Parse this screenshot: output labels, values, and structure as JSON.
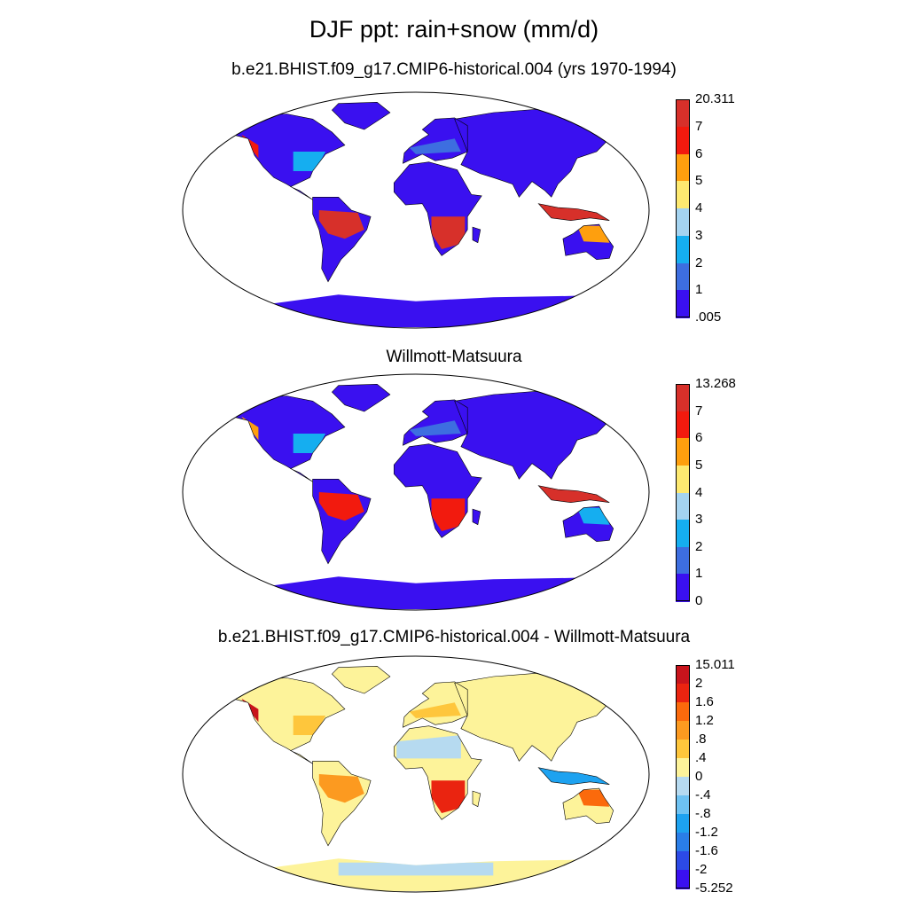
{
  "title": "DJF ppt: rain+snow (mm/d)",
  "panels": [
    {
      "id": "model",
      "subtitle": "b.e21.BHIST.f09_g17.CMIP6-historical.004 (yrs 1970-1994)",
      "colorbar": {
        "labels": [
          "20.311",
          "7",
          "6",
          "5",
          "4",
          "3",
          "2",
          "1",
          ".005"
        ],
        "colors": [
          "#d7302a",
          "#f21a0e",
          "#fe9f0e",
          "#fde970",
          "#a4d3f0",
          "#15aef0",
          "#3d6ee0",
          "#3a10f0"
        ]
      }
    },
    {
      "id": "obs",
      "subtitle": "Willmott-Matsuura",
      "colorbar": {
        "labels": [
          "13.268",
          "7",
          "6",
          "5",
          "4",
          "3",
          "2",
          "1",
          "0"
        ],
        "colors": [
          "#d7302a",
          "#f21a0e",
          "#fe9f0e",
          "#fde970",
          "#a4d3f0",
          "#15aef0",
          "#3d6ee0",
          "#3a10f0"
        ]
      }
    },
    {
      "id": "diff",
      "subtitle": "b.e21.BHIST.f09_g17.CMIP6-historical.004 - Willmott-Matsuura",
      "colorbar": {
        "labels": [
          "15.011",
          "2",
          "1.6",
          "1.2",
          ".8",
          ".4",
          "0",
          "-.4",
          "-.8",
          "-1.2",
          "-1.6",
          "-2",
          "-5.252"
        ],
        "colors": [
          "#c8141c",
          "#ea2410",
          "#fb6a0c",
          "#fc9a20",
          "#fec63c",
          "#fdf39a",
          "#b6daf0",
          "#6ec2f2",
          "#1da2f0",
          "#2a7ee8",
          "#2c4ae6",
          "#3a10f0"
        ]
      }
    }
  ]
}
